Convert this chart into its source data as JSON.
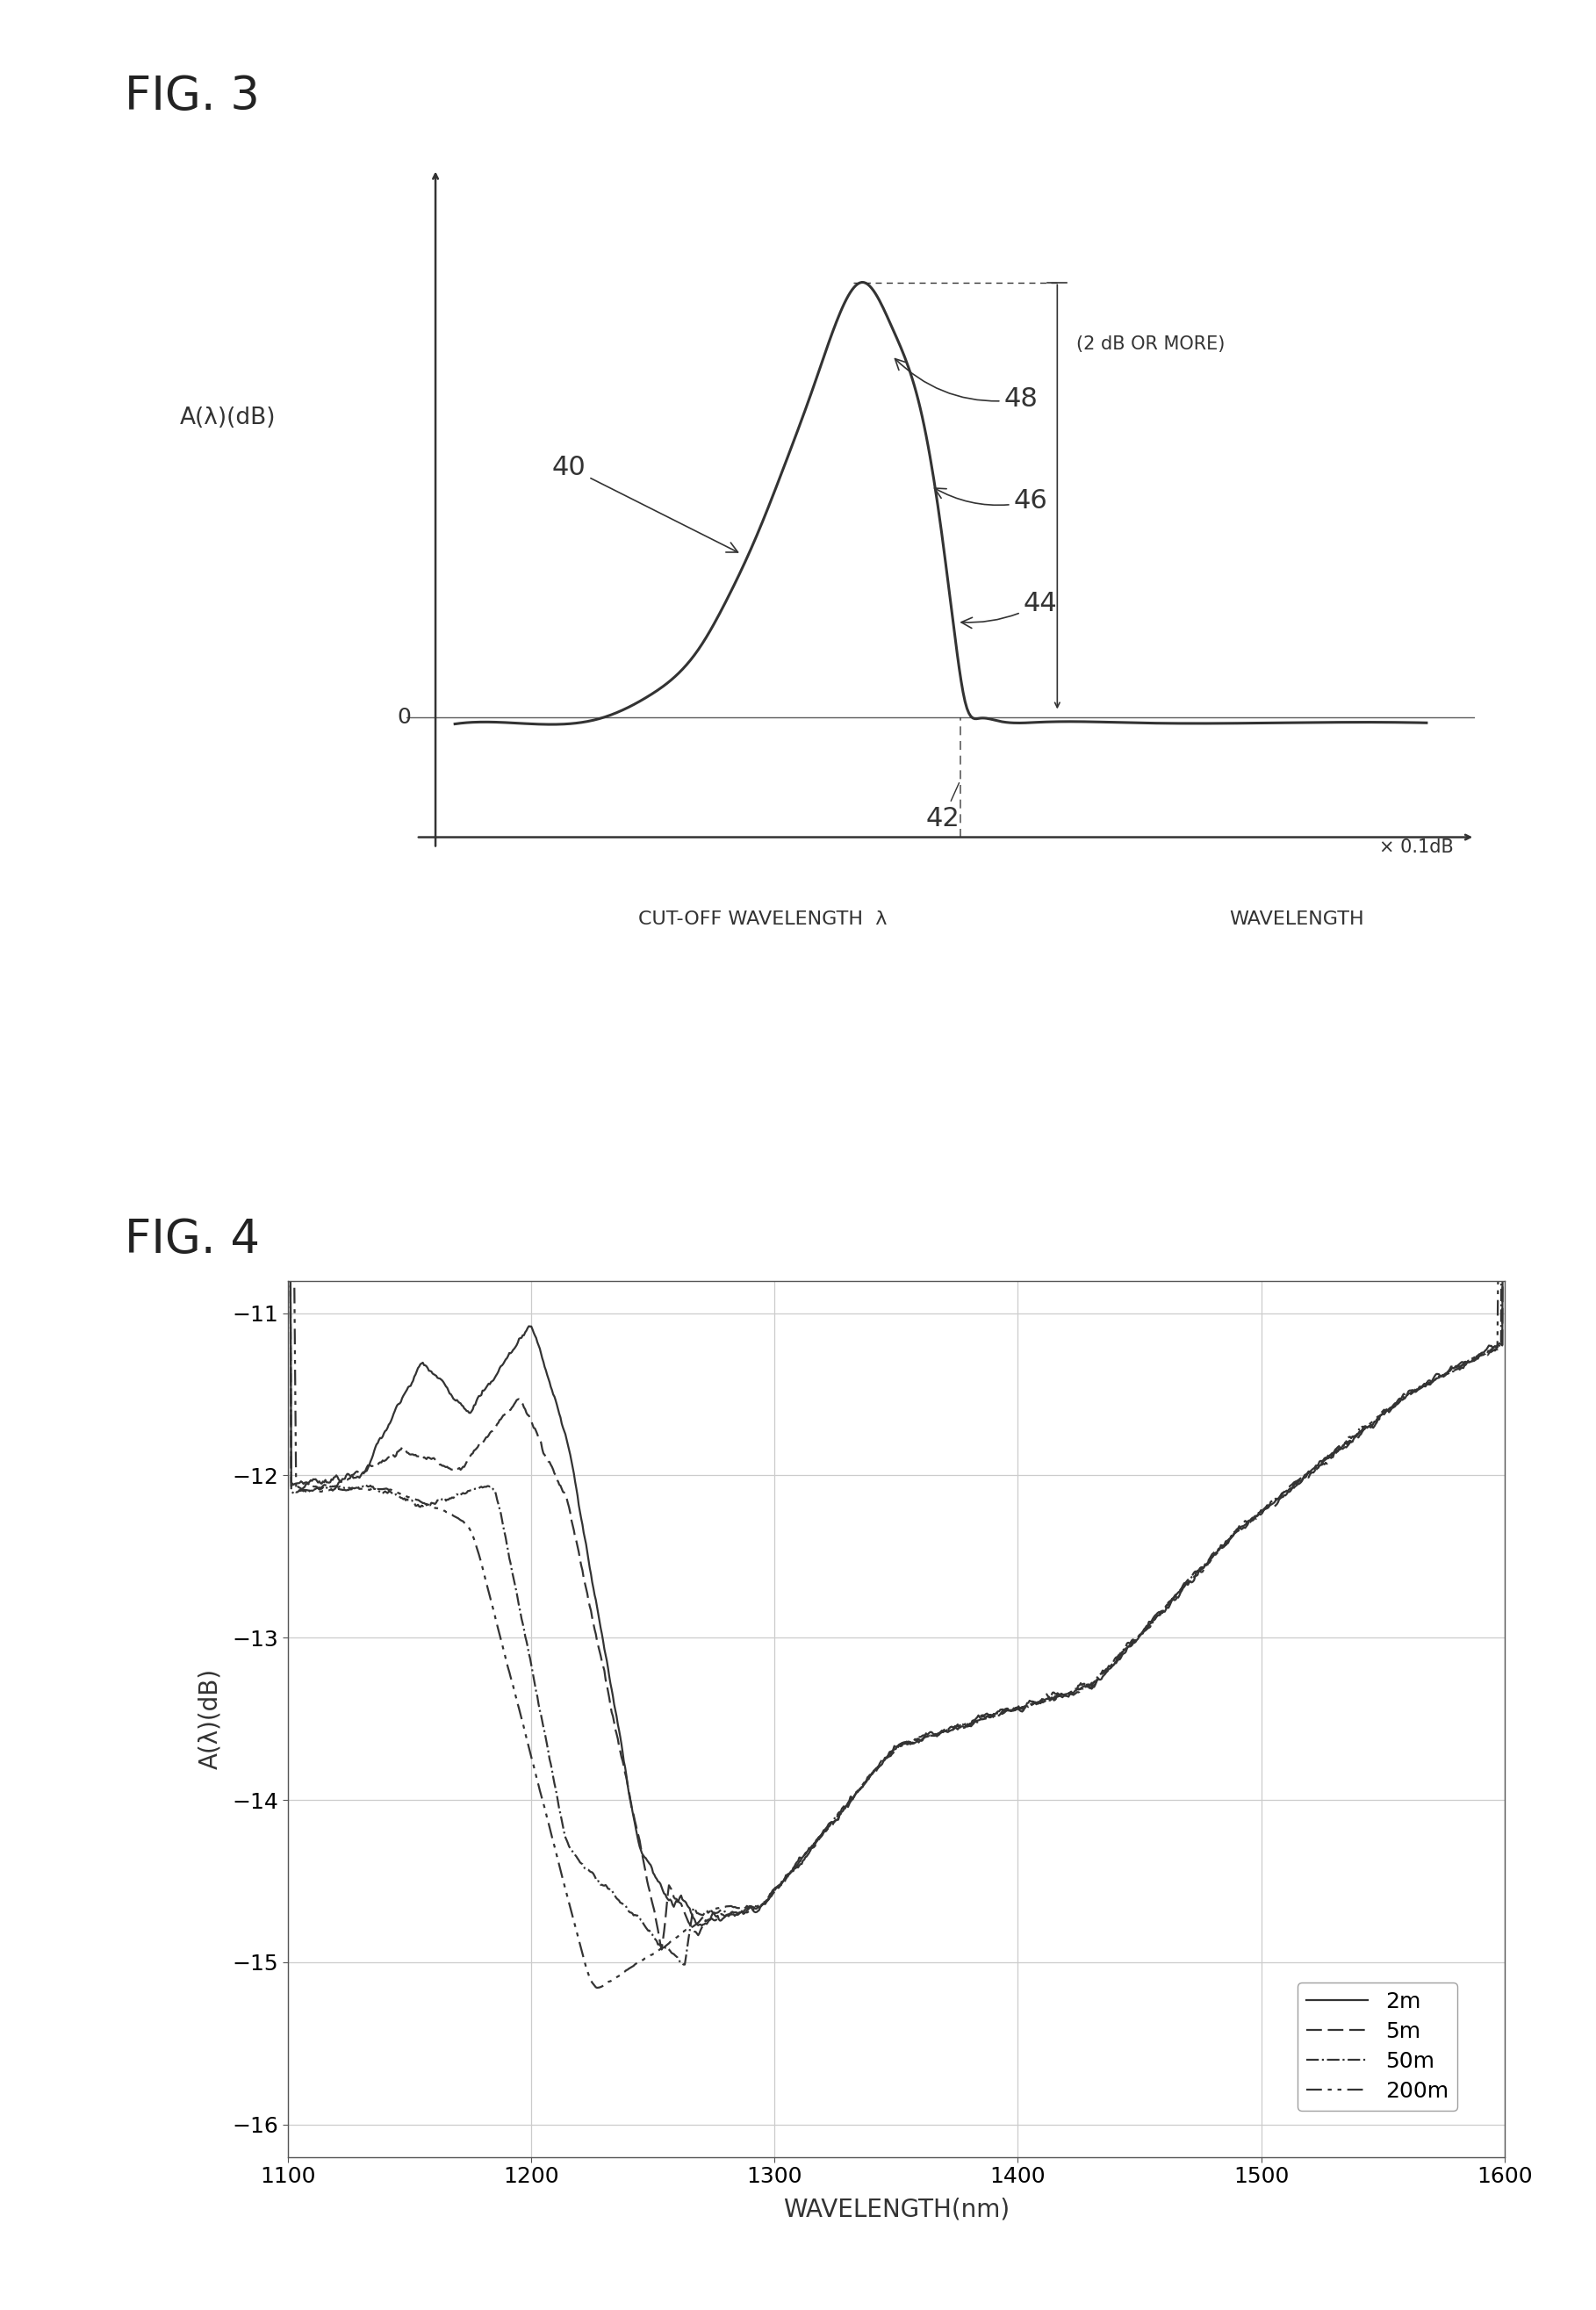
{
  "fig3_title": "FIG. 3",
  "fig4_title": "FIG. 4",
  "fig3_ylabel": "A(λ)(dB)",
  "fig3_xlabel_cutoff": "CUT-OFF WAVELENGTH  λ",
  "fig3_xlabel_wavelength": "WAVELENGTH",
  "fig3_zero_label": "0",
  "fig3_annotation_40": "40",
  "fig3_annotation_42": "42",
  "fig3_annotation_44": "44",
  "fig3_annotation_46": "46",
  "fig3_annotation_48": "48",
  "fig3_annotation_2db": "(2 dB OR MORE)",
  "fig3_annotation_01db": "× 0.1dB",
  "fig4_ylabel": "A(λ)(dB)",
  "fig4_xlabel": "WAVELENGTH(nm)",
  "fig4_yticks": [
    -16,
    -15,
    -14,
    -13,
    -12,
    -11
  ],
  "fig4_xticks": [
    1100,
    1200,
    1300,
    1400,
    1500,
    1600
  ],
  "fig4_ylim": [
    -16.2,
    -10.8
  ],
  "fig4_xlim": [
    1100,
    1600
  ],
  "fig4_legend": [
    "2m",
    "5m",
    "50m",
    "200m"
  ],
  "bg_color": "#ffffff",
  "line_color": "#333333",
  "grid_color": "#cccccc"
}
